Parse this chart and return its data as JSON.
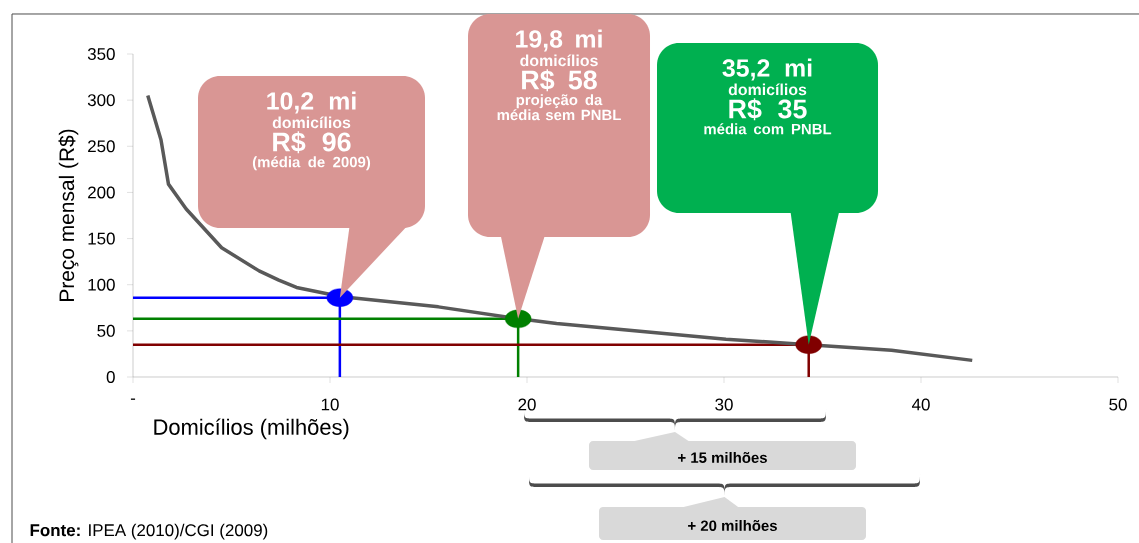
{
  "chart_data": {
    "type": "line",
    "xlabel": "Domicílios (milhões)",
    "ylabel": "Preço mensal (R$)",
    "xlim": [
      0,
      50
    ],
    "ylim": [
      0,
      350
    ],
    "xticks": [
      {
        "value": 0,
        "label": "-"
      },
      10,
      20,
      30,
      40,
      50
    ],
    "yticks": [
      0,
      50,
      100,
      150,
      200,
      250,
      300,
      350
    ],
    "series": [
      {
        "color": "#0000ff",
        "marker": "none",
        "x": [
          0,
          10.5,
          10.5
        ],
        "values": [
          86,
          86,
          0
        ]
      },
      {
        "color": "#008000",
        "marker": "none",
        "x": [
          0,
          19.55,
          19.55
        ],
        "values": [
          63,
          63,
          0
        ]
      },
      {
        "color": "#800000",
        "marker": "none",
        "x": [
          0,
          34.3,
          34.3
        ],
        "values": [
          35,
          35,
          0
        ]
      },
      {
        "color": "#595959",
        "marker": "none",
        "x": [
          0.75,
          1.42,
          1.8,
          2.7,
          4.5,
          6.4,
          7.4,
          8.3,
          10.6,
          15.5,
          19.6,
          21.5,
          30.1,
          34.3,
          38.5,
          42.6
        ],
        "values": [
          305,
          257,
          209,
          182,
          140,
          115,
          105,
          97,
          87,
          76,
          63,
          58,
          41,
          35,
          29,
          18
        ]
      },
      {
        "type": "scatter",
        "marker": "circle",
        "x": [
          10.5,
          19.55,
          34.3
        ],
        "values": [
          86,
          63,
          35
        ],
        "colors": [
          "#0000ff",
          "#008000",
          "#800000"
        ]
      }
    ],
    "annotations": [
      "10,2 mi",
      "domicílios",
      "R$ 96",
      "(média de 2009)",
      "19,8 mi",
      "domicílios",
      "R$ 58",
      "projeção da média sem PNBL",
      "35,2 mi",
      "domicílios",
      "R$ 35",
      "média com PNBL",
      "+ 15 milhões",
      "+ 20 milhões",
      "**Fonte:** IPEA (2010)/CGI (2009)"
    ]
  }
}
